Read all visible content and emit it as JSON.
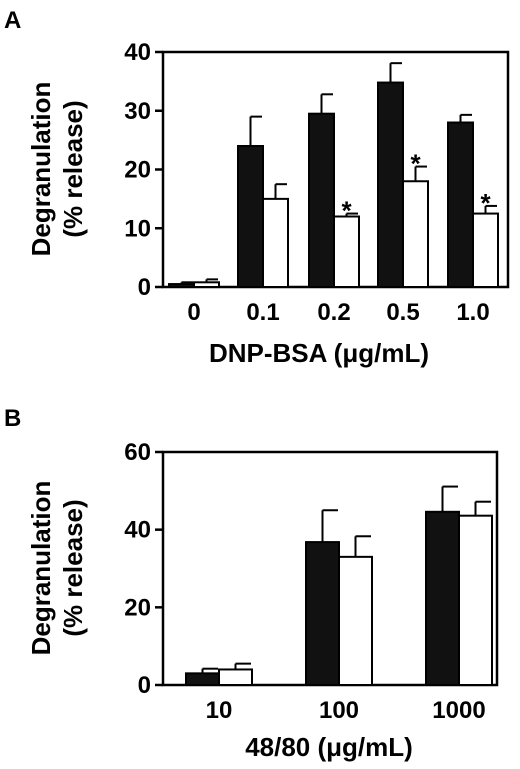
{
  "chart_data": [
    {
      "panel_label": "A",
      "type": "bar",
      "categories": [
        "0",
        "0.1",
        "0.2",
        "0.5",
        "1.0"
      ],
      "series": [
        {
          "color": "#111111",
          "values": [
            0.5,
            24,
            29.5,
            34.8,
            28
          ],
          "errors": [
            0.3,
            5,
            3.3,
            3.3,
            1.3
          ]
        },
        {
          "color": "#ffffff",
          "values": [
            0.8,
            15,
            12,
            18,
            12.5
          ],
          "errors": [
            0.5,
            2.5,
            0.5,
            2.5,
            1.3
          ],
          "significance": [
            "",
            "",
            "*",
            "*",
            "*"
          ]
        }
      ],
      "xlabel": "DNP-BSA (μg/mL)",
      "ylabel_line1": "Degranulation",
      "ylabel_line2": "(% release)",
      "ylim": [
        0,
        40
      ],
      "yticks": [
        "0",
        "10",
        "20",
        "30",
        "40"
      ],
      "grid": false,
      "legend": "none"
    },
    {
      "panel_label": "B",
      "type": "bar",
      "categories": [
        "10",
        "100",
        "1000"
      ],
      "series": [
        {
          "color": "#111111",
          "values": [
            3,
            36.8,
            44.6
          ],
          "errors": [
            1.2,
            8.2,
            6.5
          ]
        },
        {
          "color": "#ffffff",
          "values": [
            4,
            33,
            43.6
          ],
          "errors": [
            1.5,
            5.3,
            3.6
          ]
        }
      ],
      "xlabel": "48/80 (μg/mL)",
      "ylabel_line1": "Degranulation",
      "ylabel_line2": "(% release)",
      "ylim": [
        0,
        60
      ],
      "yticks": [
        "0",
        "20",
        "40",
        "60"
      ],
      "grid": false,
      "legend": "none"
    }
  ]
}
